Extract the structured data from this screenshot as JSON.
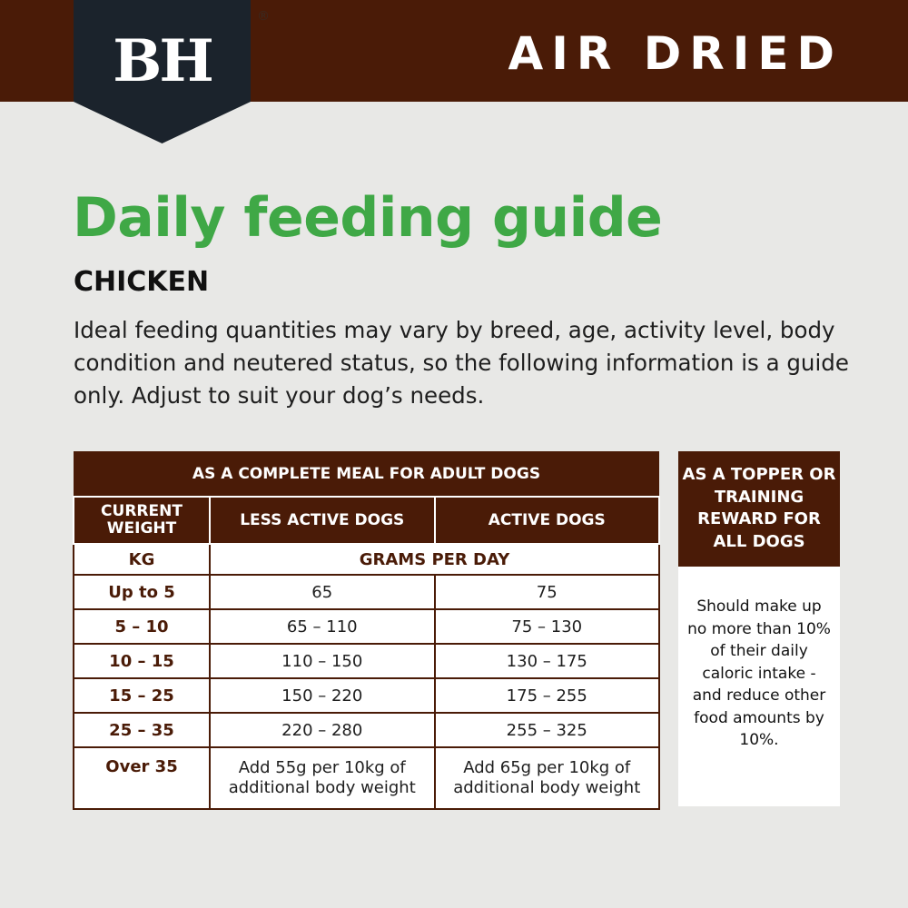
{
  "header": {
    "logo_text": "BH",
    "registered": "®",
    "title": "AIR DRIED"
  },
  "heading": "Daily feeding guide",
  "variant": "CHICKEN",
  "intro": "Ideal feeding quantities may vary by breed, age, activity level, body condition and neutered status, so the following information is a guide only. Adjust to suit your dog’s needs.",
  "table": {
    "title": "AS A COMPLETE MEAL FOR ADULT DOGS",
    "columns": [
      "CURRENT WEIGHT",
      "LESS ACTIVE DOGS",
      "ACTIVE DOGS"
    ],
    "units": [
      "KG",
      "GRAMS PER DAY"
    ],
    "rows": [
      [
        "Up to 5",
        "65",
        "75"
      ],
      [
        "5 – 10",
        "65 – 110",
        "75 – 130"
      ],
      [
        "10 – 15",
        "110 – 150",
        "130 – 175"
      ],
      [
        "15 – 25",
        "150 – 220",
        "175 – 255"
      ],
      [
        "25 – 35",
        "220 – 280",
        "255 – 325"
      ],
      [
        "Over 35",
        "Add 55g per 10kg of additional body weight",
        "Add 65g per 10kg of additional body weight"
      ]
    ]
  },
  "side": {
    "title": "AS A TOPPER OR TRAINING REWARD FOR ALL DOGS",
    "body": "Should make up no more than 10% of their daily caloric intake - and reduce other food amounts by 10%."
  },
  "colors": {
    "brown": "#4a1b07",
    "navy": "#1b232c",
    "green": "#3fa846"
  }
}
